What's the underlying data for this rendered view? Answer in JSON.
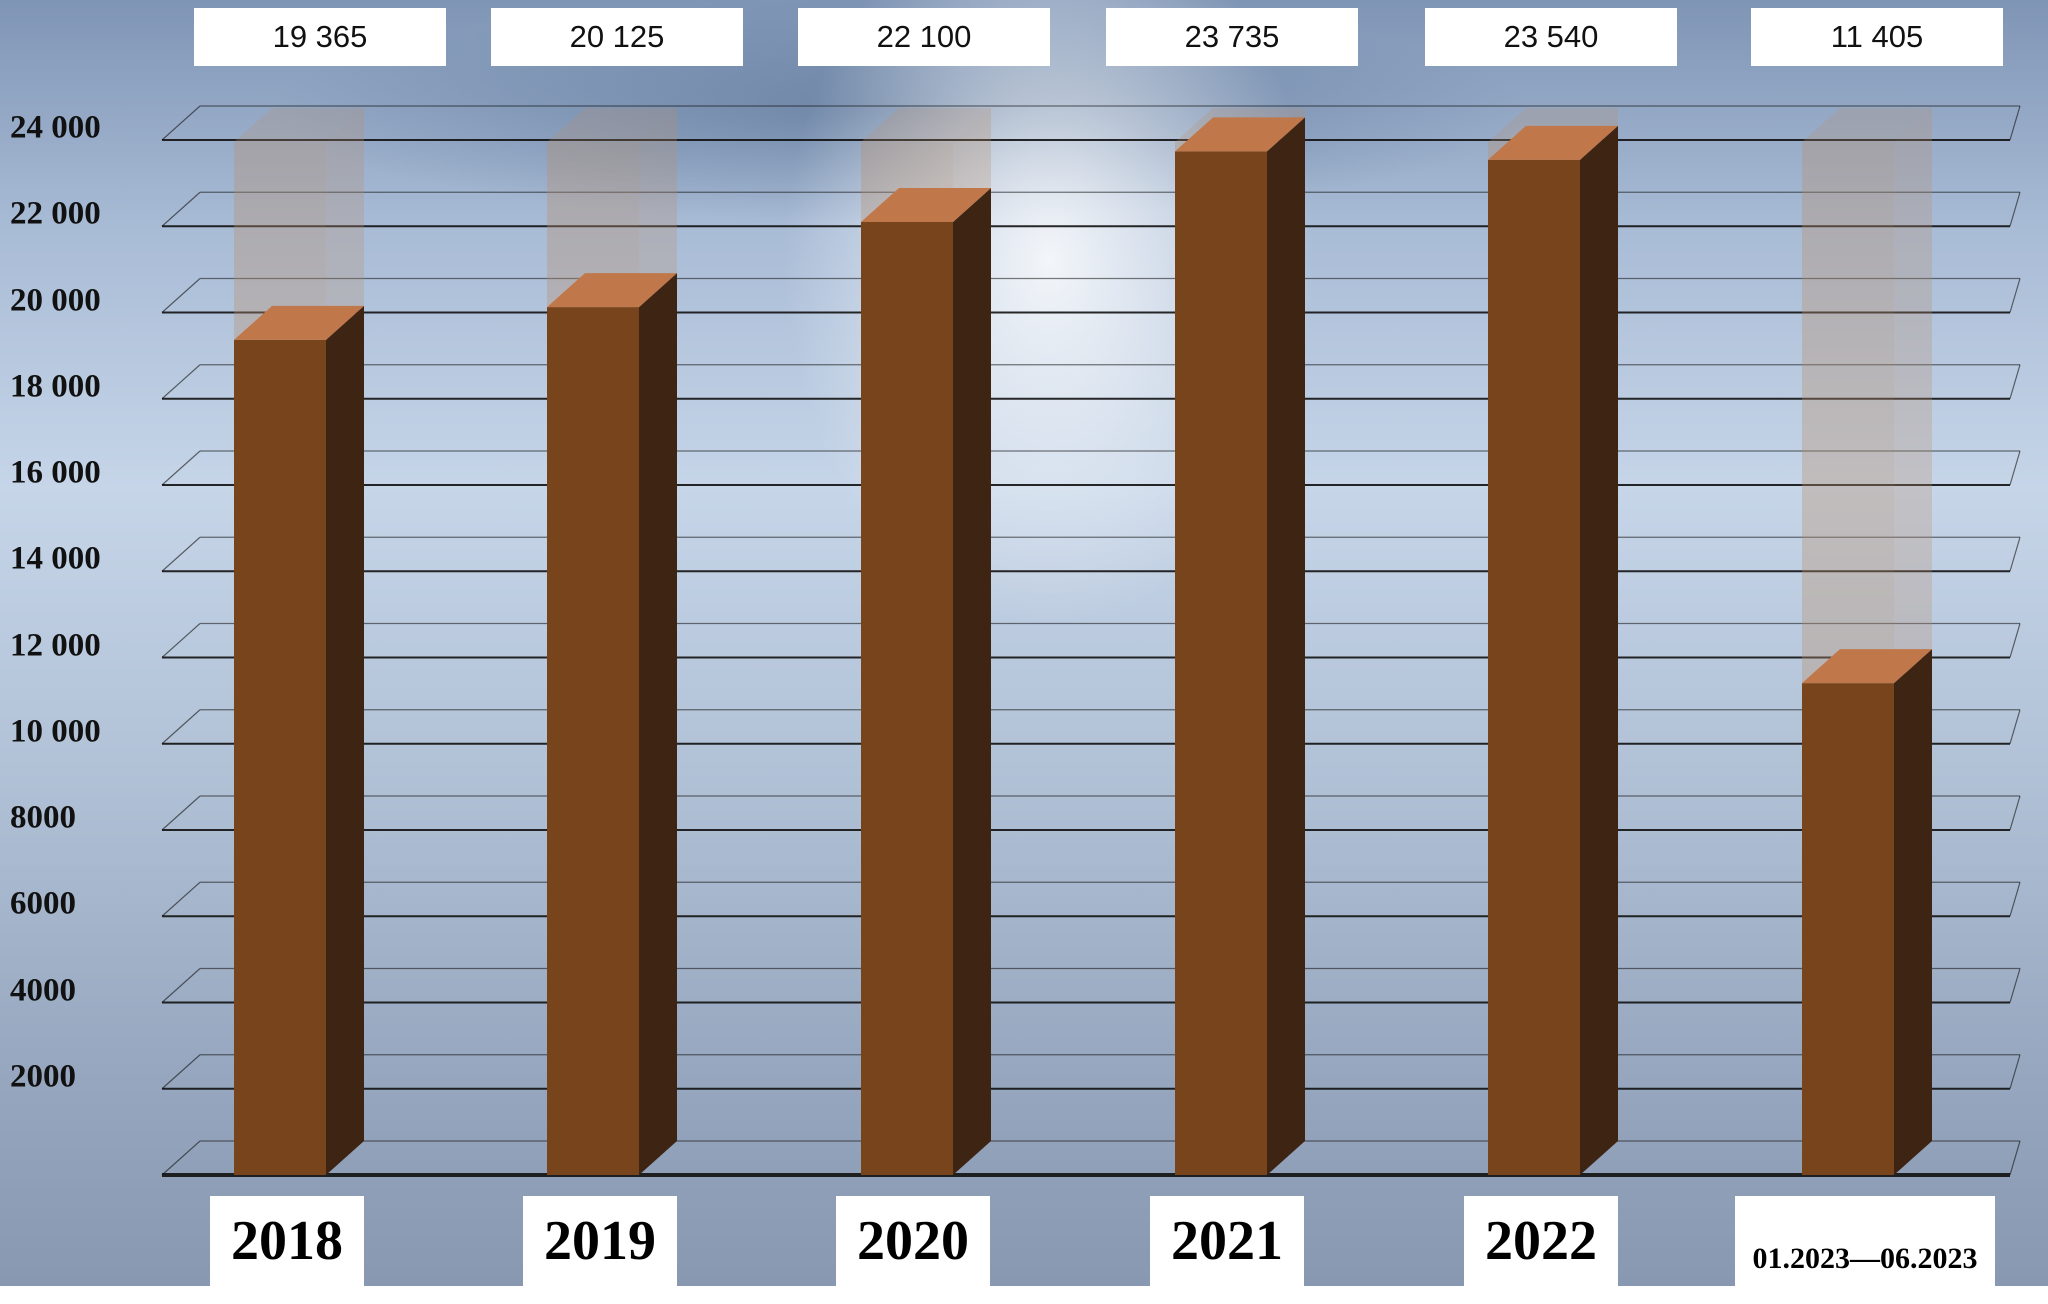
{
  "chart_data": {
    "type": "bar",
    "categories": [
      "2018",
      "2019",
      "2020",
      "2021",
      "2022",
      "01.2023—06.2023"
    ],
    "values": [
      19365,
      20125,
      22100,
      23735,
      23540,
      11405
    ],
    "value_labels": [
      "19 365",
      "20 125",
      "22 100",
      "23 735",
      "23 540",
      "11 405"
    ],
    "ylim": [
      0,
      24000
    ],
    "yticks": [
      2000,
      4000,
      6000,
      8000,
      10000,
      12000,
      14000,
      16000,
      18000,
      20000,
      22000,
      24000
    ],
    "ytick_labels": [
      "2000",
      "4000",
      "6000",
      "8000",
      "10 000",
      "12 000",
      "14 000",
      "16 000",
      "18 000",
      "20 000",
      "22 000",
      "24 000"
    ],
    "grid": true,
    "title": "",
    "xlabel": "",
    "ylabel": "",
    "colors": {
      "bar_front": "#77441b",
      "bar_side": "#3e2413",
      "bar_top": "#c0784a",
      "ghost": "#b88f6e",
      "grid_line": "#111111"
    }
  }
}
